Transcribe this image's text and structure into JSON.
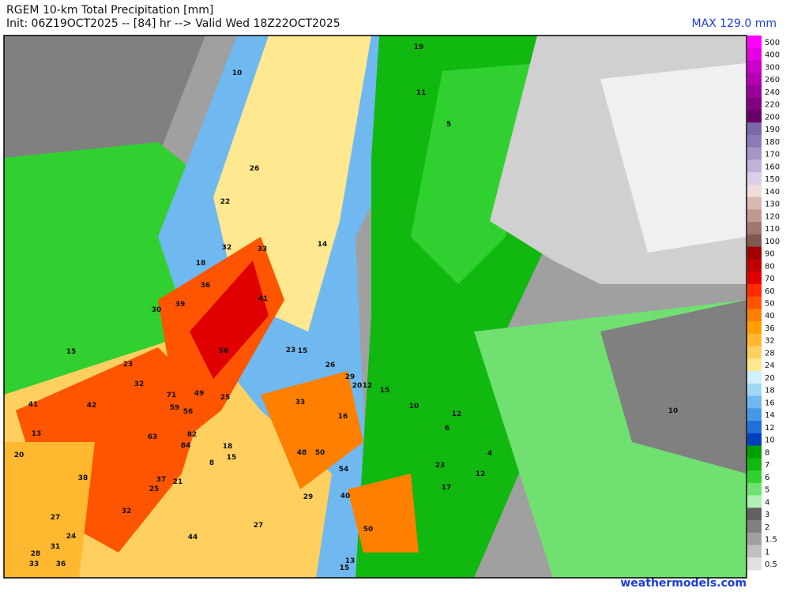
{
  "header": {
    "title": "RGEM 10-km Total Precipitation [mm]",
    "init": "Init: 06Z19OCT2025 -- [84] hr --> Valid Wed 18Z22OCT2025",
    "max": "MAX 129.0 mm"
  },
  "colorbar": {
    "labels": [
      "500",
      "400",
      "300",
      "260",
      "240",
      "220",
      "200",
      "190",
      "180",
      "170",
      "160",
      "150",
      "140",
      "130",
      "120",
      "110",
      "100",
      "90",
      "80",
      "70",
      "60",
      "50",
      "40",
      "36",
      "32",
      "28",
      "24",
      "20",
      "18",
      "16",
      "14",
      "12",
      "10",
      "8",
      "7",
      "6",
      "5",
      "4",
      "3",
      "2",
      "1.5",
      "1",
      "0.5"
    ],
    "colors": [
      "#ff00ff",
      "#e600e6",
      "#cc00cc",
      "#b300b3",
      "#990099",
      "#800080",
      "#660066",
      "#7b68a8",
      "#8c7ab8",
      "#a596c8",
      "#bfb2d9",
      "#d9d0e8",
      "#f0dcd8",
      "#d8b8b0",
      "#c09890",
      "#a07870",
      "#805850",
      "#a00000",
      "#c00000",
      "#e00000",
      "#ff2a00",
      "#ff5500",
      "#ff7f00",
      "#ffa000",
      "#ffb830",
      "#ffd060",
      "#ffe890",
      "#d0f0ff",
      "#a0d8f8",
      "#70b8f0",
      "#4898e8",
      "#2070d8",
      "#0040c0",
      "#00a000",
      "#10b810",
      "#30d030",
      "#70e070",
      "#b0f0b0",
      "#606060",
      "#808080",
      "#a0a0a0",
      "#c0c0c0",
      "#e0e0e0"
    ]
  },
  "map_labels": [
    10,
    19,
    11,
    5,
    26,
    22,
    32,
    33,
    14,
    18,
    36,
    30,
    39,
    41,
    15,
    23,
    56,
    15,
    26,
    29,
    20,
    12,
    15,
    13,
    23,
    32,
    42,
    71,
    49,
    59,
    56,
    63,
    82,
    84,
    25,
    33,
    48,
    50,
    18,
    15,
    16,
    10,
    12,
    12,
    10,
    6,
    4,
    23,
    17,
    29,
    27,
    44,
    50,
    54,
    40,
    41,
    21,
    37,
    25,
    38,
    27,
    32,
    24,
    31,
    28,
    33,
    36,
    20,
    13,
    15,
    8
  ],
  "footer": "weathermodels.com"
}
